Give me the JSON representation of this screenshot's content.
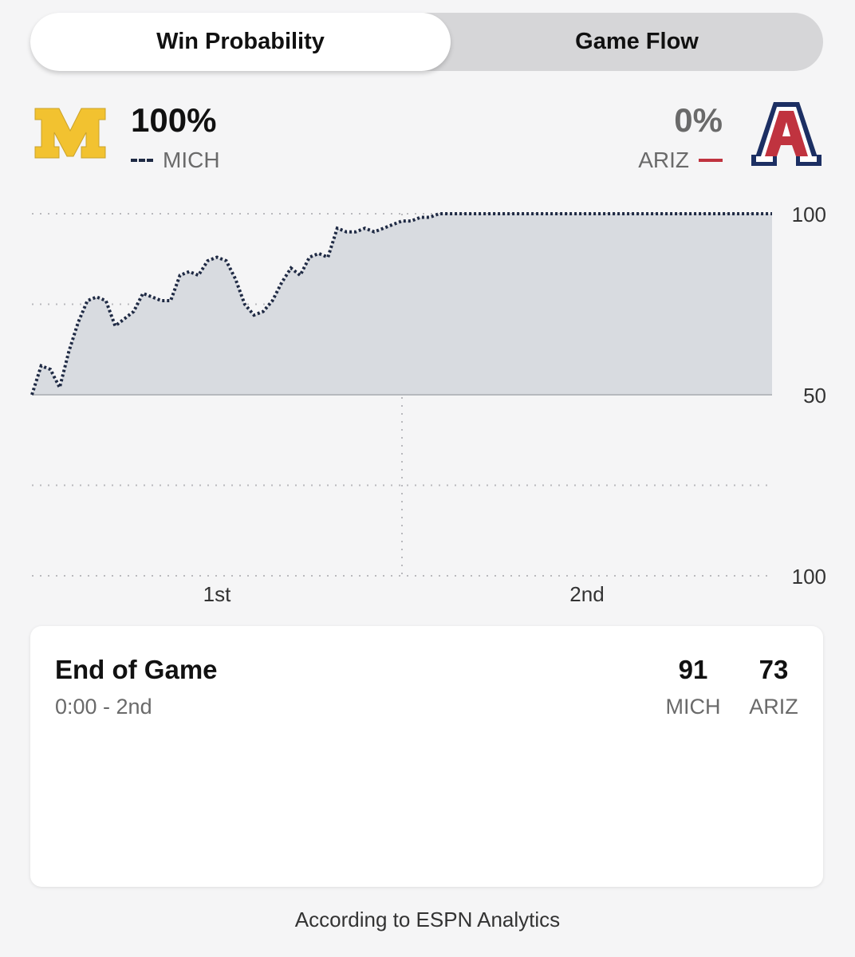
{
  "tabs": {
    "win_probability": "Win Probability",
    "game_flow": "Game Flow"
  },
  "home": {
    "pct": "100%",
    "abbr": "MICH",
    "logo_letter": "M",
    "logo_color": "#f2c230",
    "line_color": "#1f2a44"
  },
  "away": {
    "pct": "0%",
    "abbr": "ARIZ",
    "logo_letter": "A",
    "logo_color": "#c0333f",
    "line_color": "#c0333f"
  },
  "chart_data": {
    "type": "area",
    "xlabel": "",
    "ylabel": "",
    "x_labels": [
      "1st",
      "2nd"
    ],
    "y_ticks": [
      "100",
      "50",
      "100"
    ],
    "ylim": [
      -50,
      50
    ],
    "note_of_axis": "",
    "grid": true,
    "series": [
      {
        "name": "MICH",
        "x": [
          0,
          0.5,
          1,
          1.5,
          2,
          2.5,
          3,
          3.5,
          4,
          4.5,
          5,
          5.5,
          6,
          6.5,
          7,
          7.5,
          8,
          8.5,
          9,
          9.5,
          10,
          10.5,
          11,
          11.5,
          12,
          12.5,
          13,
          13.5,
          14,
          14.5,
          15,
          15.5,
          16,
          16.5,
          17,
          17.5,
          18,
          18.5,
          19,
          19.5,
          20,
          20.5,
          21,
          21.5,
          22,
          22.5,
          23,
          23.5,
          24,
          24.5,
          25,
          25.5,
          26,
          27,
          28,
          29,
          30,
          31,
          32,
          33,
          34,
          35,
          36,
          37,
          38,
          39,
          40
        ],
        "values": [
          0,
          8,
          7,
          2,
          12,
          20,
          26,
          27,
          26,
          19,
          21,
          23,
          28,
          27,
          26,
          26,
          33,
          34,
          33,
          37,
          38,
          37,
          32,
          25,
          22,
          23,
          26,
          31,
          35,
          33,
          38,
          39,
          38,
          46,
          45,
          45,
          46,
          45,
          46,
          47,
          48,
          48,
          49,
          49,
          50,
          50,
          50,
          50,
          50,
          50,
          50,
          50,
          50,
          50,
          50,
          50,
          50,
          50,
          50,
          50,
          50,
          50,
          50,
          50,
          50,
          50,
          50
        ]
      }
    ]
  },
  "game_state": {
    "status": "End of Game",
    "clock": "0:00 - 2nd",
    "home_score": "91",
    "home_abbr": "MICH",
    "away_score": "73",
    "away_abbr": "ARIZ"
  },
  "footer": {
    "source": "According to ESPN Analytics"
  }
}
